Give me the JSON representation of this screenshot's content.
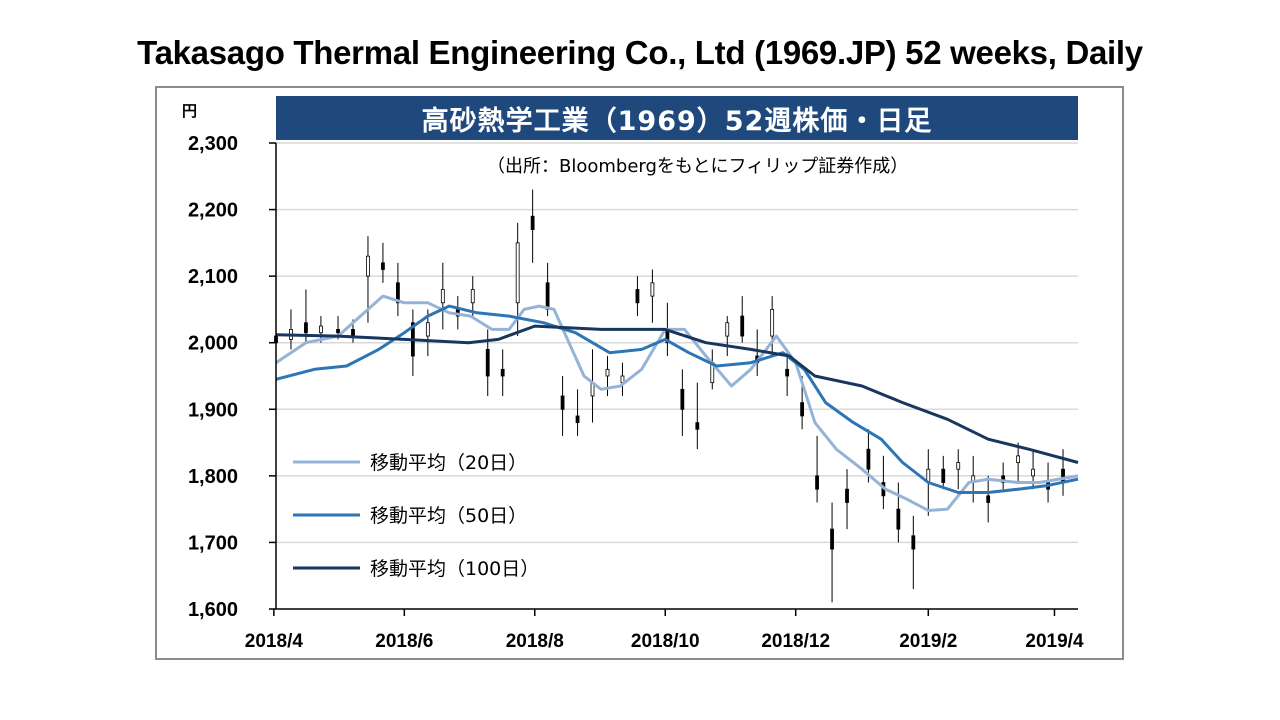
{
  "page": {
    "title": "Takasago Thermal Engineering Co., Ltd (1969.JP) 52 weeks, Daily"
  },
  "chart_data": {
    "type": "line",
    "title": "高砂熱学工業（1969）52週株価・日足",
    "source_note": "（出所：Bloombergをもとにフィリップ証券作成）",
    "ylabel": "円",
    "ylim": [
      1600,
      2300
    ],
    "yticks": [
      1600,
      1700,
      1800,
      1900,
      2000,
      2100,
      2200,
      2300
    ],
    "ytick_labels": [
      "1,600",
      "1,700",
      "1,800",
      "1,900",
      "2,000",
      "2,100",
      "2,200",
      "2,300"
    ],
    "xlim": [
      "2018-04-02",
      "2019-04-12"
    ],
    "xticks": [
      "2018-04-01",
      "2018-06-01",
      "2018-08-01",
      "2018-10-01",
      "2018-12-01",
      "2019-02-01",
      "2019-04-01"
    ],
    "xtick_labels": [
      "2018/4",
      "2018/6",
      "2018/8",
      "2018/10",
      "2018/12",
      "2019/2",
      "2019/4"
    ],
    "grid": "horizontal",
    "legend_position": "left-bottom",
    "candles": [
      [
        "2018-04-02",
        2010,
        1995,
        2030,
        2000
      ],
      [
        "2018-04-09",
        2005,
        1990,
        2050,
        2020
      ],
      [
        "2018-04-16",
        2030,
        2000,
        2080,
        2015
      ],
      [
        "2018-04-23",
        2015,
        2000,
        2040,
        2025
      ],
      [
        "2018-05-01",
        2020,
        2005,
        2040,
        2015
      ],
      [
        "2018-05-08",
        2020,
        2000,
        2035,
        2010
      ],
      [
        "2018-05-15",
        2100,
        2030,
        2160,
        2130
      ],
      [
        "2018-05-22",
        2120,
        2090,
        2150,
        2110
      ],
      [
        "2018-05-29",
        2090,
        2040,
        2120,
        2060
      ],
      [
        "2018-06-05",
        2030,
        1950,
        2050,
        1980
      ],
      [
        "2018-06-12",
        2010,
        1980,
        2050,
        2030
      ],
      [
        "2018-06-19",
        2060,
        2020,
        2120,
        2080
      ],
      [
        "2018-06-26",
        2050,
        2020,
        2070,
        2040
      ],
      [
        "2018-07-03",
        2060,
        2040,
        2100,
        2080
      ],
      [
        "2018-07-10",
        1990,
        1920,
        2020,
        1950
      ],
      [
        "2018-07-17",
        1960,
        1920,
        1990,
        1950
      ],
      [
        "2018-07-24",
        2060,
        2010,
        2180,
        2150
      ],
      [
        "2018-07-31",
        2190,
        2120,
        2230,
        2170
      ],
      [
        "2018-08-07",
        2090,
        2040,
        2120,
        2050
      ],
      [
        "2018-08-14",
        1920,
        1860,
        1950,
        1900
      ],
      [
        "2018-08-21",
        1890,
        1860,
        1930,
        1880
      ],
      [
        "2018-08-28",
        1920,
        1880,
        1990,
        1940
      ],
      [
        "2018-09-04",
        1950,
        1920,
        1980,
        1960
      ],
      [
        "2018-09-11",
        1940,
        1920,
        1970,
        1950
      ],
      [
        "2018-09-18",
        2080,
        2040,
        2100,
        2060
      ],
      [
        "2018-09-25",
        2070,
        2030,
        2110,
        2090
      ],
      [
        "2018-10-02",
        2020,
        1980,
        2060,
        2000
      ],
      [
        "2018-10-09",
        1930,
        1860,
        1960,
        1900
      ],
      [
        "2018-10-16",
        1880,
        1840,
        1940,
        1870
      ],
      [
        "2018-10-23",
        1940,
        1930,
        1990,
        1970
      ],
      [
        "2018-10-30",
        2010,
        1980,
        2040,
        2030
      ],
      [
        "2018-11-06",
        2040,
        2000,
        2070,
        2010
      ],
      [
        "2018-11-13",
        1980,
        1950,
        2020,
        1970
      ],
      [
        "2018-11-20",
        2010,
        1980,
        2070,
        2050
      ],
      [
        "2018-11-27",
        1960,
        1920,
        1990,
        1950
      ],
      [
        "2018-12-04",
        1910,
        1870,
        1950,
        1890
      ],
      [
        "2018-12-11",
        1800,
        1760,
        1860,
        1780
      ],
      [
        "2018-12-18",
        1720,
        1610,
        1760,
        1690
      ],
      [
        "2018-12-25",
        1780,
        1720,
        1810,
        1760
      ],
      [
        "2019-01-04",
        1840,
        1790,
        1870,
        1810
      ],
      [
        "2019-01-11",
        1790,
        1750,
        1830,
        1770
      ],
      [
        "2019-01-18",
        1750,
        1700,
        1790,
        1720
      ],
      [
        "2019-01-25",
        1710,
        1630,
        1740,
        1690
      ],
      [
        "2019-02-01",
        1790,
        1740,
        1840,
        1810
      ],
      [
        "2019-02-08",
        1810,
        1780,
        1830,
        1790
      ],
      [
        "2019-02-15",
        1810,
        1780,
        1840,
        1820
      ],
      [
        "2019-02-22",
        1790,
        1760,
        1830,
        1800
      ],
      [
        "2019-03-01",
        1770,
        1730,
        1800,
        1760
      ],
      [
        "2019-03-08",
        1800,
        1780,
        1820,
        1790
      ],
      [
        "2019-03-15",
        1820,
        1790,
        1850,
        1830
      ],
      [
        "2019-03-22",
        1800,
        1780,
        1840,
        1810
      ],
      [
        "2019-03-29",
        1790,
        1760,
        1820,
        1780
      ],
      [
        "2019-04-05",
        1810,
        1770,
        1840,
        1790
      ]
    ],
    "series": [
      {
        "name": "移動平均（20日）",
        "color": "#95b3d7",
        "points": [
          [
            "2018-04-02",
            1970
          ],
          [
            "2018-04-16",
            2000
          ],
          [
            "2018-05-01",
            2010
          ],
          [
            "2018-05-15",
            2050
          ],
          [
            "2018-05-22",
            2070
          ],
          [
            "2018-06-01",
            2060
          ],
          [
            "2018-06-12",
            2060
          ],
          [
            "2018-06-22",
            2045
          ],
          [
            "2018-07-02",
            2040
          ],
          [
            "2018-07-12",
            2020
          ],
          [
            "2018-07-20",
            2020
          ],
          [
            "2018-07-27",
            2050
          ],
          [
            "2018-08-03",
            2055
          ],
          [
            "2018-08-10",
            2050
          ],
          [
            "2018-08-17",
            2000
          ],
          [
            "2018-08-24",
            1950
          ],
          [
            "2018-09-01",
            1930
          ],
          [
            "2018-09-10",
            1935
          ],
          [
            "2018-09-20",
            1960
          ],
          [
            "2018-10-01",
            2020
          ],
          [
            "2018-10-10",
            2020
          ],
          [
            "2018-10-20",
            1980
          ],
          [
            "2018-11-01",
            1935
          ],
          [
            "2018-11-10",
            1960
          ],
          [
            "2018-11-22",
            2010
          ],
          [
            "2018-12-01",
            1970
          ],
          [
            "2018-12-10",
            1880
          ],
          [
            "2018-12-20",
            1840
          ],
          [
            "2019-01-01",
            1810
          ],
          [
            "2019-01-12",
            1780
          ],
          [
            "2019-01-22",
            1765
          ],
          [
            "2019-02-01",
            1748
          ],
          [
            "2019-02-10",
            1750
          ],
          [
            "2019-02-20",
            1790
          ],
          [
            "2019-03-01",
            1795
          ],
          [
            "2019-03-15",
            1790
          ],
          [
            "2019-03-25",
            1790
          ],
          [
            "2019-04-12",
            1800
          ]
        ]
      },
      {
        "name": "移動平均（50日）",
        "color": "#2e75b6",
        "points": [
          [
            "2018-04-02",
            1945
          ],
          [
            "2018-04-20",
            1960
          ],
          [
            "2018-05-05",
            1965
          ],
          [
            "2018-05-20",
            1990
          ],
          [
            "2018-06-01",
            2015
          ],
          [
            "2018-06-12",
            2040
          ],
          [
            "2018-06-22",
            2055
          ],
          [
            "2018-07-05",
            2045
          ],
          [
            "2018-07-20",
            2040
          ],
          [
            "2018-08-05",
            2030
          ],
          [
            "2018-08-20",
            2015
          ],
          [
            "2018-09-05",
            1985
          ],
          [
            "2018-09-20",
            1990
          ],
          [
            "2018-10-01",
            2005
          ],
          [
            "2018-10-12",
            1985
          ],
          [
            "2018-10-25",
            1965
          ],
          [
            "2018-11-10",
            1970
          ],
          [
            "2018-11-25",
            1985
          ],
          [
            "2018-12-05",
            1960
          ],
          [
            "2018-12-15",
            1910
          ],
          [
            "2018-12-28",
            1880
          ],
          [
            "2019-01-10",
            1855
          ],
          [
            "2019-01-20",
            1820
          ],
          [
            "2019-02-01",
            1790
          ],
          [
            "2019-02-15",
            1775
          ],
          [
            "2019-03-01",
            1775
          ],
          [
            "2019-03-15",
            1780
          ],
          [
            "2019-03-28",
            1785
          ],
          [
            "2019-04-12",
            1795
          ]
        ]
      },
      {
        "name": "移動平均（100日）",
        "color": "#17375e",
        "points": [
          [
            "2018-04-02",
            2012
          ],
          [
            "2018-05-01",
            2010
          ],
          [
            "2018-06-01",
            2005
          ],
          [
            "2018-07-01",
            2000
          ],
          [
            "2018-07-15",
            2005
          ],
          [
            "2018-08-01",
            2025
          ],
          [
            "2018-09-01",
            2020
          ],
          [
            "2018-10-01",
            2020
          ],
          [
            "2018-10-20",
            2000
          ],
          [
            "2018-11-10",
            1990
          ],
          [
            "2018-11-28",
            1980
          ],
          [
            "2018-12-10",
            1950
          ],
          [
            "2019-01-01",
            1935
          ],
          [
            "2019-01-20",
            1910
          ],
          [
            "2019-02-10",
            1885
          ],
          [
            "2019-03-01",
            1855
          ],
          [
            "2019-03-20",
            1840
          ],
          [
            "2019-04-12",
            1820
          ]
        ]
      }
    ]
  }
}
